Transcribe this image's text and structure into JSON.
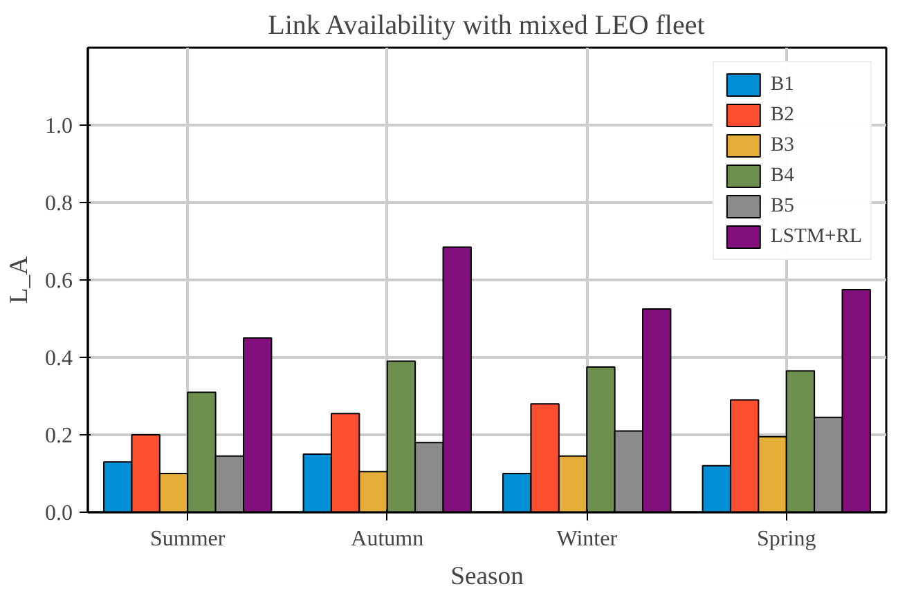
{
  "chart_data": {
    "type": "bar",
    "title": "Link Availability with mixed LEO fleet",
    "xlabel": "Season",
    "ylabel": "L_A",
    "categories": [
      "Summer",
      "Autumn",
      "Winter",
      "Spring"
    ],
    "series": [
      {
        "name": "B1",
        "color": "#008fd5",
        "values": [
          0.13,
          0.15,
          0.1,
          0.12
        ]
      },
      {
        "name": "B2",
        "color": "#fc4f30",
        "values": [
          0.2,
          0.255,
          0.28,
          0.29
        ]
      },
      {
        "name": "B3",
        "color": "#e5ae38",
        "values": [
          0.1,
          0.105,
          0.145,
          0.195
        ]
      },
      {
        "name": "B4",
        "color": "#6d904f",
        "values": [
          0.31,
          0.39,
          0.375,
          0.365
        ]
      },
      {
        "name": "B5",
        "color": "#8b8b8b",
        "values": [
          0.145,
          0.18,
          0.21,
          0.245
        ]
      },
      {
        "name": "LSTM+RL",
        "color": "#810f7c",
        "values": [
          0.45,
          0.685,
          0.525,
          0.575
        ]
      }
    ],
    "ylim": [
      0,
      1.2
    ],
    "yticks": [
      {
        "value": 0,
        "label": "0.0"
      },
      {
        "value": 0.2,
        "label": "0.2"
      },
      {
        "value": 0.4,
        "label": "0.4"
      },
      {
        "value": 0.6,
        "label": "0.6"
      },
      {
        "value": 0.8,
        "label": "0.8"
      },
      {
        "value": 1.0,
        "label": "1.0"
      }
    ],
    "grid": true,
    "legend": "top right"
  }
}
